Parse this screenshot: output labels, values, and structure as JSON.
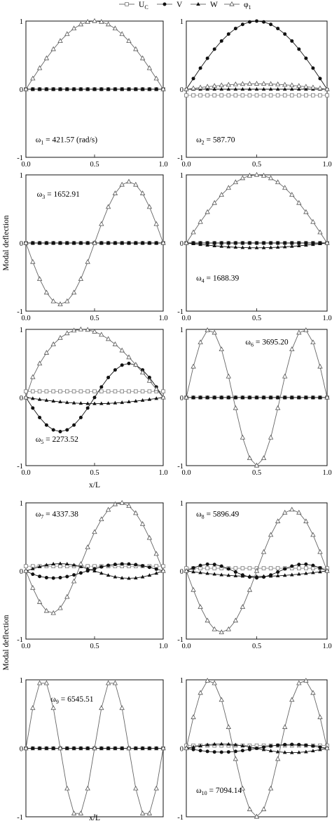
{
  "legend": {
    "items": [
      {
        "label": "U",
        "sub": "C",
        "marker": "square-open"
      },
      {
        "label": "V",
        "sub": "",
        "marker": "circle-filled"
      },
      {
        "label": "W",
        "sub": "",
        "marker": "triangle-filled"
      },
      {
        "label": "φ",
        "sub": "1",
        "marker": "triangle-open"
      }
    ]
  },
  "ylabel": "Modal deflection",
  "xlabel": "x/L",
  "chart_data": [
    {
      "type": "line",
      "mode": 1,
      "annotation": {
        "text": "ω",
        "sub": "1",
        "value": " = 421.57 (rad/s)"
      },
      "xlim": [
        0,
        1
      ],
      "ylim": [
        -1,
        1
      ],
      "xticks": [
        0.0,
        0.5,
        1.0
      ],
      "yticks": [
        -1,
        0,
        1
      ],
      "series": [
        {
          "name": "UC",
          "fn": "zero",
          "amp": 0
        },
        {
          "name": "V",
          "fn": "zero",
          "amp": 0
        },
        {
          "name": "W",
          "fn": "zero",
          "amp": 0
        },
        {
          "name": "phi1",
          "fn": "s1",
          "amp": 1.0
        }
      ]
    },
    {
      "type": "line",
      "mode": 2,
      "annotation": {
        "text": "ω",
        "sub": "2",
        "value": " = 587.70"
      },
      "xlim": [
        0,
        1
      ],
      "ylim": [
        -1,
        1
      ],
      "xticks": [
        0.0,
        0.5,
        1.0
      ],
      "yticks": [
        -1,
        0,
        1
      ],
      "series": [
        {
          "name": "UC",
          "fn": "const",
          "amp": -0.09
        },
        {
          "name": "V",
          "fn": "s1",
          "amp": 1.0
        },
        {
          "name": "W",
          "fn": "const",
          "amp": 0.0
        },
        {
          "name": "phi1",
          "fn": "s1",
          "amp": 0.08
        }
      ]
    },
    {
      "type": "line",
      "mode": 3,
      "annotation": {
        "text": "ω",
        "sub": "3",
        "value": " = 1652.91"
      },
      "xlim": [
        0,
        1
      ],
      "ylim": [
        -1,
        1
      ],
      "xticks": [
        0.0,
        0.5,
        1.0
      ],
      "yticks": [
        -1,
        0,
        1
      ],
      "series": [
        {
          "name": "UC",
          "fn": "zero",
          "amp": 0
        },
        {
          "name": "V",
          "fn": "zero",
          "amp": 0
        },
        {
          "name": "W",
          "fn": "zero",
          "amp": 0
        },
        {
          "name": "phi1",
          "fn": "s2n",
          "amp": 0.9
        }
      ]
    },
    {
      "type": "line",
      "mode": 4,
      "annotation": {
        "text": "ω",
        "sub": "4",
        "value": " = 1688.39"
      },
      "xlim": [
        0,
        1
      ],
      "ylim": [
        -1,
        1
      ],
      "xticks": [
        0.0,
        0.5,
        1.0
      ],
      "yticks": [
        -1,
        0,
        1
      ],
      "series": [
        {
          "name": "UC",
          "fn": "zero",
          "amp": 0
        },
        {
          "name": "V",
          "fn": "zero",
          "amp": 0
        },
        {
          "name": "W",
          "fn": "s1",
          "amp": -0.07
        },
        {
          "name": "phi1",
          "fn": "s1",
          "amp": 1.0
        }
      ]
    },
    {
      "type": "line",
      "mode": 5,
      "annotation": {
        "text": "ω",
        "sub": "5",
        "value": " = 2273.52"
      },
      "xlim": [
        0,
        1
      ],
      "ylim": [
        -1,
        1
      ],
      "xticks": [
        0.0,
        0.5,
        1.0
      ],
      "yticks": [
        -1,
        0,
        1
      ],
      "series": [
        {
          "name": "UC",
          "fn": "const",
          "amp": 0.09
        },
        {
          "name": "V",
          "fn": "s2n",
          "amp": 0.5
        },
        {
          "name": "W",
          "fn": "s1",
          "amp": -0.09
        },
        {
          "name": "phi1",
          "fn": "hump",
          "amp": 1.0
        }
      ]
    },
    {
      "type": "line",
      "mode": 6,
      "annotation": {
        "text": "ω",
        "sub": "6",
        "value": " = 3695.20"
      },
      "xlim": [
        0,
        1
      ],
      "ylim": [
        -1,
        1
      ],
      "xticks": [
        0.0,
        0.5,
        1.0
      ],
      "yticks": [
        -1,
        0,
        1
      ],
      "series": [
        {
          "name": "UC",
          "fn": "zero",
          "amp": 0
        },
        {
          "name": "V",
          "fn": "zero",
          "amp": 0
        },
        {
          "name": "W",
          "fn": "zero",
          "amp": 0
        },
        {
          "name": "phi1",
          "fn": "s3",
          "amp": 1.0
        }
      ]
    },
    {
      "type": "line",
      "mode": 7,
      "annotation": {
        "text": "ω",
        "sub": "7",
        "value": " = 4337.38"
      },
      "xlim": [
        0,
        1
      ],
      "ylim": [
        -1,
        1
      ],
      "xticks": [
        0.0,
        0.5,
        1.0
      ],
      "yticks": [
        -1,
        0,
        1
      ],
      "series": [
        {
          "name": "UC",
          "fn": "const",
          "amp": 0.07
        },
        {
          "name": "V",
          "fn": "m7v",
          "amp": 0.13
        },
        {
          "name": "W",
          "fn": "m7w",
          "amp": 0.12
        },
        {
          "name": "phi1",
          "fn": "m7p",
          "amp": 1.0
        }
      ]
    },
    {
      "type": "line",
      "mode": 8,
      "annotation": {
        "text": "ω",
        "sub": "8",
        "value": " = 5896.49"
      },
      "xlim": [
        0,
        1
      ],
      "ylim": [
        -1,
        1
      ],
      "xticks": [
        0.0,
        0.5,
        1.0
      ],
      "yticks": [
        -1,
        0,
        1
      ],
      "series": [
        {
          "name": "UC",
          "fn": "const",
          "amp": 0.04
        },
        {
          "name": "V",
          "fn": "s3",
          "amp": 0.1
        },
        {
          "name": "W",
          "fn": "s1",
          "amp": -0.08
        },
        {
          "name": "phi1",
          "fn": "s2n",
          "amp": 0.9
        }
      ]
    },
    {
      "type": "line",
      "mode": 9,
      "annotation": {
        "text": "ω",
        "sub": "9",
        "value": " = 6545.51"
      },
      "xlim": [
        0,
        1
      ],
      "ylim": [
        -1,
        1
      ],
      "xticks": [
        0.0,
        0.5,
        1.0
      ],
      "yticks": [
        -1,
        0,
        1
      ],
      "series": [
        {
          "name": "UC",
          "fn": "zero",
          "amp": 0
        },
        {
          "name": "V",
          "fn": "zero",
          "amp": 0
        },
        {
          "name": "W",
          "fn": "zero",
          "amp": 0
        },
        {
          "name": "phi1",
          "fn": "s4",
          "amp": 1.0
        }
      ]
    },
    {
      "type": "line",
      "mode": 10,
      "annotation": {
        "text": "ω",
        "sub": "10",
        "value": " = 7094.14"
      },
      "xlim": [
        0,
        1
      ],
      "ylim": [
        -1,
        1
      ],
      "xticks": [
        0.0,
        0.5,
        1.0
      ],
      "yticks": [
        -1,
        0,
        1
      ],
      "series": [
        {
          "name": "UC",
          "fn": "const",
          "amp": 0.04
        },
        {
          "name": "V",
          "fn": "m10v",
          "amp": 0.08
        },
        {
          "name": "W",
          "fn": "m10w",
          "amp": 0.07
        },
        {
          "name": "phi1",
          "fn": "s3",
          "amp": 1.0
        }
      ]
    }
  ]
}
